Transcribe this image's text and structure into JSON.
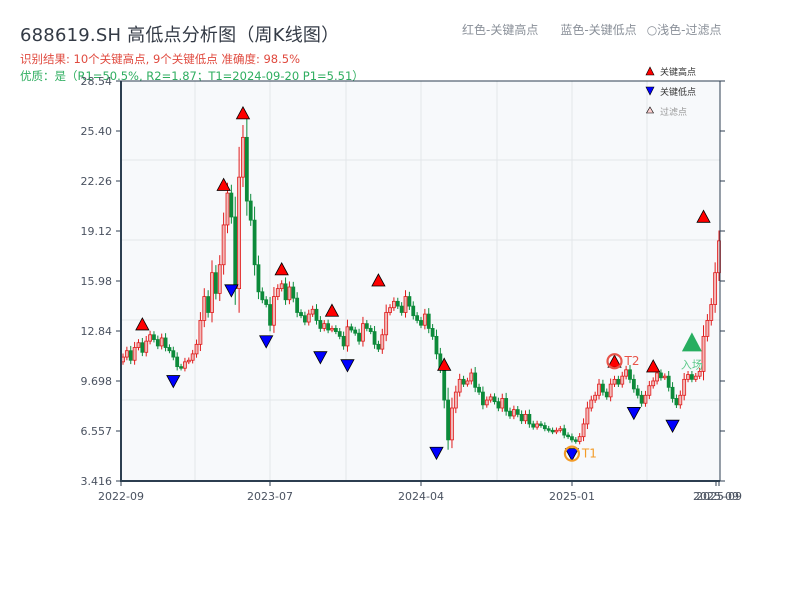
{
  "header": {
    "title": "688619.SH 高低点分析图（周K线图）",
    "result_line": "识别结果: 10个关键高点, 9个关键低点  准确度: 98.5%",
    "quality_line": "优质：是（R1=50.5%, R2=1.87；T1=2024-09-20 P1=5.51）"
  },
  "top_legend": {
    "red": "红色-关键高点",
    "blue": "蓝色-关键低点",
    "light": "○浅色-过滤点"
  },
  "plot_legend": {
    "high": "关键高点",
    "low": "关键低点",
    "filtered": "过滤点"
  },
  "annotations": {
    "t1": "T1",
    "t2": "T2",
    "entry": "入场"
  },
  "colors": {
    "up": "#e01b1b",
    "down": "#0c8a3a",
    "high_marker": "#ff0000",
    "low_marker": "#0000ff",
    "t1_ring": "#f39c28",
    "t2_ring": "#e8544a",
    "entry": "#27ae60",
    "grid": "#e3e6ea",
    "plot_bg": "#f7f9fb",
    "axis": "#2c3e50"
  },
  "chart_data": {
    "type": "candlestick",
    "title": "688619.SH 高低点分析图（周K线图）",
    "ylim": [
      3.416,
      28.54
    ],
    "yticks": [
      "3.416",
      "6.557",
      "9.698",
      "12.84",
      "15.98",
      "19.12",
      "22.26",
      "25.40",
      "28.54"
    ],
    "xticks": [
      "2022-09",
      "2023-07",
      "2024-04",
      "2025-01",
      "2025-09",
      "2025-09"
    ],
    "xtick_positions": [
      0,
      38,
      75,
      112,
      154,
      155
    ],
    "n_bars": 155,
    "closes": [
      11.2,
      11.6,
      11.0,
      11.8,
      12.1,
      11.5,
      12.2,
      12.6,
      12.3,
      11.9,
      12.4,
      11.8,
      11.6,
      11.2,
      10.6,
      10.5,
      10.9,
      11.0,
      11.4,
      12.0,
      13.5,
      15.0,
      14.0,
      16.5,
      15.2,
      17.0,
      19.5,
      21.5,
      20.0,
      15.5,
      22.5,
      25.0,
      21.0,
      19.8,
      17.0,
      15.3,
      14.8,
      14.5,
      13.2,
      15.0,
      15.5,
      15.8,
      14.8,
      15.6,
      14.9,
      14.0,
      13.8,
      13.4,
      13.9,
      14.2,
      13.5,
      13.0,
      13.3,
      12.9,
      13.0,
      12.8,
      12.5,
      11.9,
      13.1,
      12.9,
      12.7,
      12.2,
      13.3,
      13.0,
      12.8,
      12.0,
      11.7,
      12.6,
      14.0,
      14.3,
      14.7,
      14.4,
      14.0,
      15.0,
      14.4,
      13.8,
      13.5,
      13.2,
      13.9,
      13.0,
      12.5,
      11.4,
      10.5,
      8.5,
      6.0,
      8.0,
      9.0,
      9.8,
      9.5,
      9.7,
      10.2,
      9.3,
      9.0,
      8.2,
      8.5,
      8.7,
      8.4,
      8.0,
      8.6,
      7.8,
      7.5,
      7.9,
      7.6,
      7.2,
      7.6,
      7.0,
      6.8,
      7.0,
      6.9,
      6.7,
      6.6,
      6.5,
      6.6,
      6.7,
      6.3,
      6.2,
      6.0,
      5.9,
      6.2,
      7.0,
      8.0,
      8.5,
      8.8,
      9.5,
      9.0,
      8.7,
      9.5,
      9.8,
      9.5,
      10.0,
      10.4,
      9.8,
      9.2,
      8.8,
      8.3,
      8.8,
      9.4,
      9.7,
      10.2,
      9.9,
      10.0,
      9.3,
      8.6,
      8.2,
      8.8,
      9.8,
      10.1,
      9.8,
      10.0,
      10.3,
      12.5,
      13.5,
      14.5,
      16.5,
      18.5,
      16.0,
      15.6
    ],
    "key_highs": [
      {
        "bar": 5,
        "price": 12.84
      },
      {
        "bar": 26,
        "price": 21.6
      },
      {
        "bar": 31,
        "price": 26.1
      },
      {
        "bar": 41,
        "price": 16.3
      },
      {
        "bar": 54,
        "price": 13.7
      },
      {
        "bar": 66,
        "price": 15.6
      },
      {
        "bar": 83,
        "price": 10.3
      },
      {
        "bar": 127,
        "price": 10.5
      },
      {
        "bar": 137,
        "price": 10.2
      },
      {
        "bar": 150,
        "price": 19.6
      }
    ],
    "key_lows": [
      {
        "bar": 13,
        "price": 10.1
      },
      {
        "bar": 28,
        "price": 15.8
      },
      {
        "bar": 37,
        "price": 12.6
      },
      {
        "bar": 51,
        "price": 11.6
      },
      {
        "bar": 58,
        "price": 11.1
      },
      {
        "bar": 81,
        "price": 5.6
      },
      {
        "bar": 116,
        "price": 5.51
      },
      {
        "bar": 132,
        "price": 8.1
      },
      {
        "bar": 142,
        "price": 7.3
      }
    ],
    "t1": {
      "bar": 116,
      "price": 5.51,
      "label": "T1"
    },
    "t2": {
      "bar": 127,
      "price": 10.5,
      "label": "T2"
    },
    "entry": {
      "bar": 147,
      "price": 12.0,
      "label": "入场"
    },
    "legend_position": "upper right",
    "grid": true
  }
}
